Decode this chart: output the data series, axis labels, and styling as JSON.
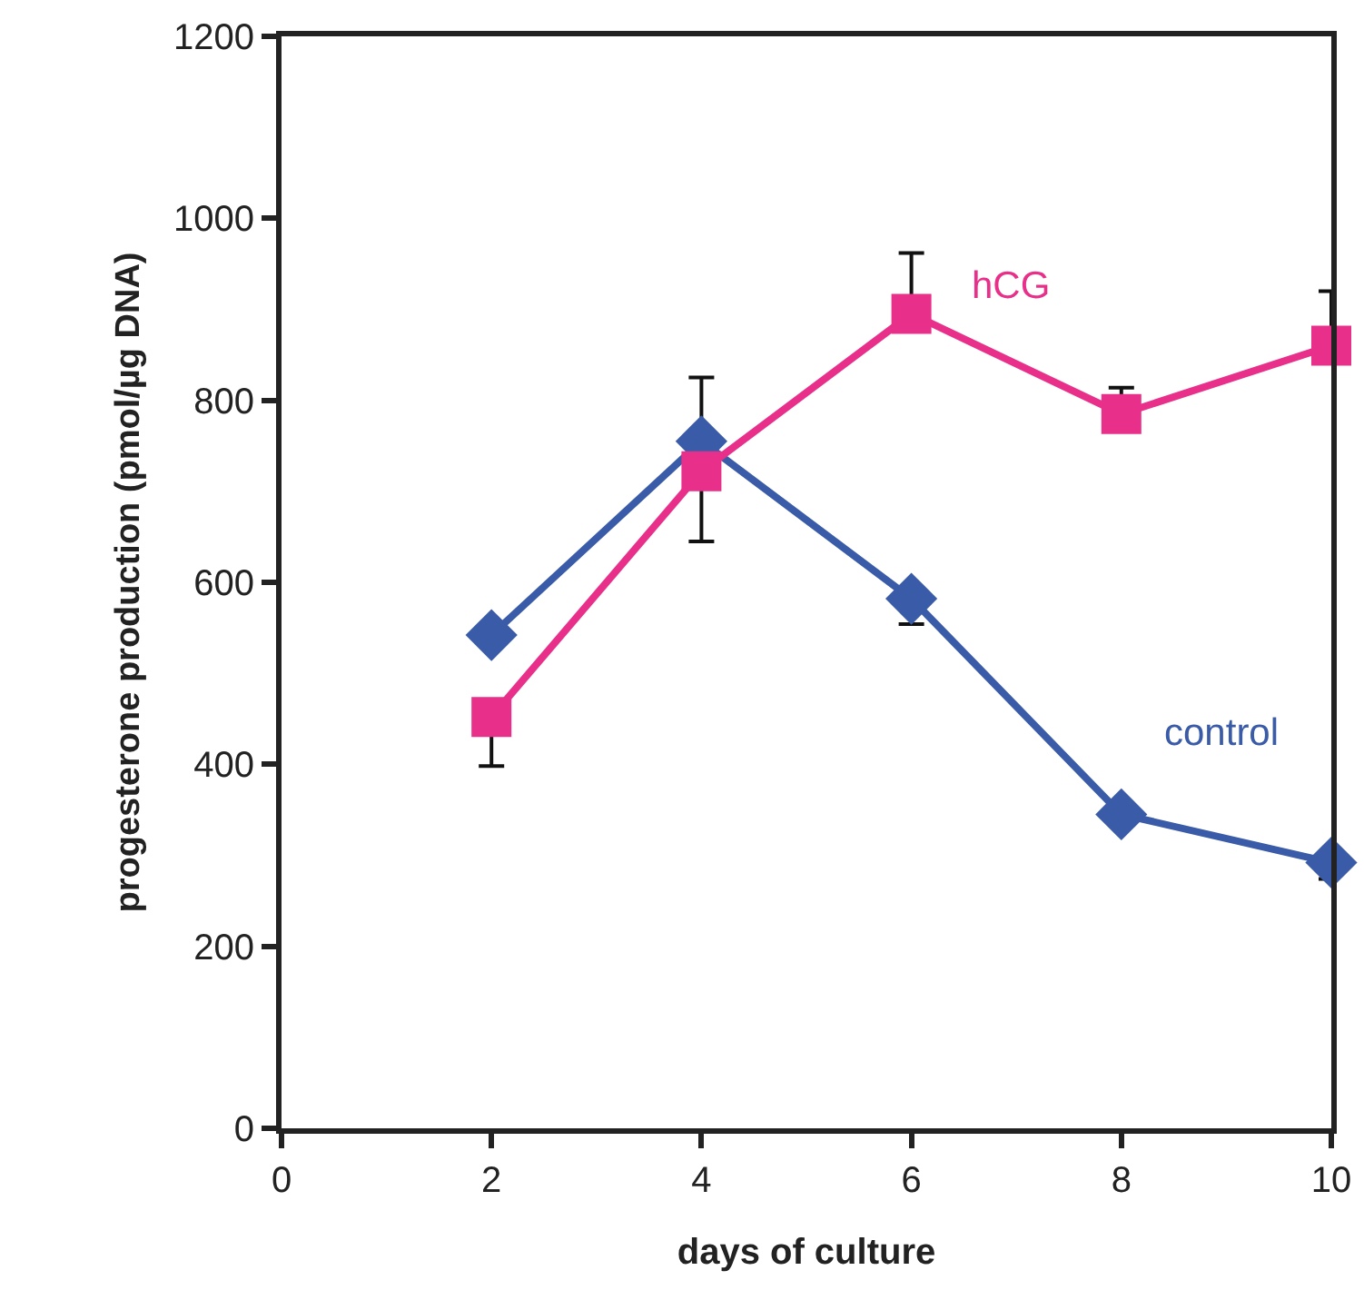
{
  "chart_data": {
    "type": "line",
    "xlabel": "days of culture",
    "ylabel": "progesterone production (pmol/µg DNA)",
    "x": [
      2,
      4,
      6,
      8,
      10
    ],
    "xlim": [
      0,
      10
    ],
    "xticks": [
      0,
      2,
      4,
      6,
      8,
      10
    ],
    "ylim": [
      0,
      1200
    ],
    "yticks": [
      0,
      200,
      400,
      600,
      800,
      1000,
      1200
    ],
    "grid": false,
    "legend": false,
    "series": [
      {
        "name": "control",
        "color": "#3a5ba8",
        "marker": "diamond",
        "values": [
          542,
          755,
          582,
          345,
          292
        ],
        "errors": [
          null,
          [
            755,
            825
          ],
          [
            554,
            582
          ],
          null,
          [
            274,
            292
          ]
        ]
      },
      {
        "name": "hCG",
        "color": "#e8308a",
        "marker": "square",
        "values": [
          452,
          722,
          895,
          785,
          860
        ],
        "errors": [
          [
            398,
            452
          ],
          [
            645,
            722
          ],
          [
            895,
            962
          ],
          [
            785,
            814
          ],
          [
            860,
            920
          ]
        ]
      }
    ]
  }
}
